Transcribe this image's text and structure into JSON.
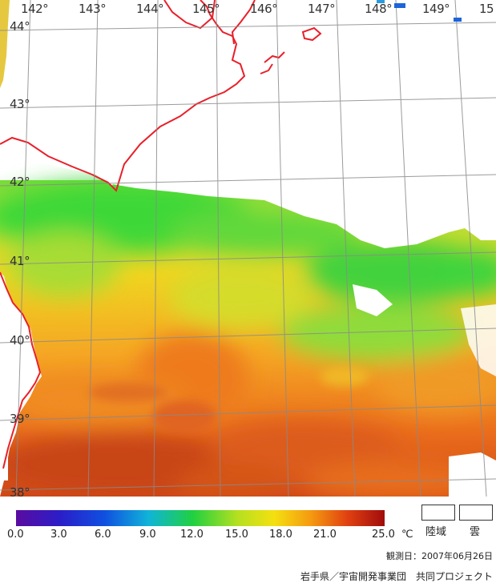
{
  "map": {
    "latitude_labels": [
      "44°",
      "43°",
      "42°",
      "41°",
      "40°",
      "39°",
      "38°"
    ],
    "longitude_labels": [
      "142°",
      "143°",
      "144°",
      "145°",
      "146°",
      "147°",
      "148°",
      "149°",
      "15"
    ],
    "land_color": "#ffffff",
    "coastline_color": "#e8202a",
    "grid_color": "#8a8a8a",
    "cloud_color": "#ffffff"
  },
  "colorbar": {
    "ticks": [
      "0.0",
      "3.0",
      "6.0",
      "9.0",
      "12.0",
      "15.0",
      "18.0",
      "21.0",
      "25.0"
    ],
    "unit": "℃",
    "min": 0,
    "max": 25
  },
  "legend": {
    "land_label": "陸域",
    "cloud_label": "雲"
  },
  "observation_date": "観測日：2007年06月26日",
  "footer": "岩手県／宇宙開発事業団　共同プロジェクト"
}
